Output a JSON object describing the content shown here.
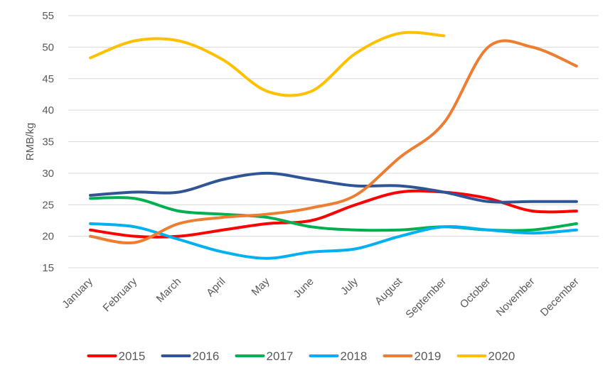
{
  "chart_data": {
    "type": "line",
    "title": "",
    "xlabel": "",
    "ylabel": "RMB/kg",
    "ylim": [
      15,
      55
    ],
    "yticks": [
      15,
      20,
      25,
      30,
      35,
      40,
      45,
      50,
      55
    ],
    "grid": true,
    "legend_position": "bottom",
    "categories": [
      "January",
      "February",
      "March",
      "April",
      "May",
      "June",
      "July",
      "August",
      "September",
      "October",
      "November",
      "December"
    ],
    "series": [
      {
        "name": "2015",
        "color": "#ff0000",
        "values": [
          21,
          20,
          20,
          21,
          22,
          22.5,
          25,
          27,
          27,
          26,
          24,
          24
        ]
      },
      {
        "name": "2016",
        "color": "#2f5597",
        "values": [
          26.5,
          27,
          27,
          29,
          30,
          29,
          28,
          28,
          27,
          25.5,
          25.5,
          25.5
        ]
      },
      {
        "name": "2017",
        "color": "#00b050",
        "values": [
          26,
          26,
          24,
          23.5,
          23,
          21.5,
          21,
          21,
          21.5,
          21,
          21,
          22
        ]
      },
      {
        "name": "2018",
        "color": "#00b0f0",
        "values": [
          22,
          21.5,
          19.5,
          17.5,
          16.5,
          17.5,
          18,
          20,
          21.5,
          21,
          20.5,
          21
        ]
      },
      {
        "name": "2019",
        "color": "#ed7d31",
        "values": [
          20,
          19,
          22,
          23,
          23.5,
          24.5,
          26.5,
          32.5,
          38,
          50,
          50,
          47
        ]
      },
      {
        "name": "2020",
        "color": "#ffc000",
        "values": [
          48.3,
          51,
          51,
          48,
          43,
          43,
          49,
          52.2,
          51.8,
          null,
          null,
          null
        ]
      }
    ]
  }
}
